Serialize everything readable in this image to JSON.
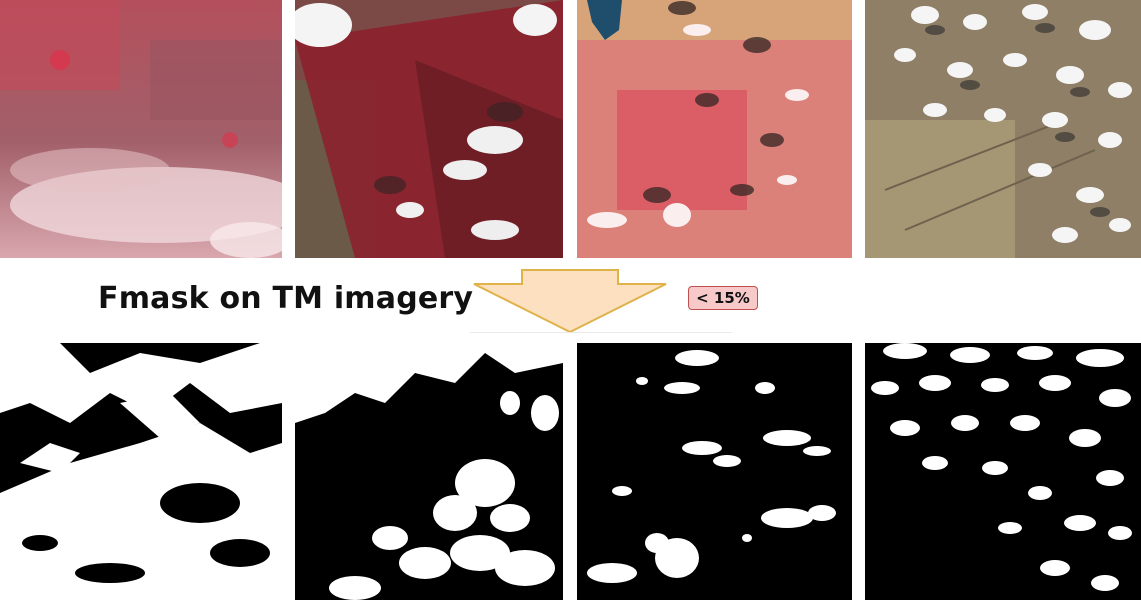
{
  "caption": "Fmask on TM imagery",
  "threshold_badge": "< 15%",
  "colors": {
    "arrow_fill": "#fde0c0",
    "arrow_stroke": "#e0b24a",
    "badge_fill": "#f8c9c9",
    "badge_border": "#c0504d",
    "mask_cloud": "#ffffff",
    "mask_background": "#000000"
  },
  "scenes": [
    {
      "name": "scene-1-false-color"
    },
    {
      "name": "scene-2-false-color"
    },
    {
      "name": "scene-3-false-color"
    },
    {
      "name": "scene-4-false-color"
    }
  ],
  "masks": [
    {
      "name": "mask-1"
    },
    {
      "name": "mask-2"
    },
    {
      "name": "mask-3"
    },
    {
      "name": "mask-4"
    }
  ]
}
